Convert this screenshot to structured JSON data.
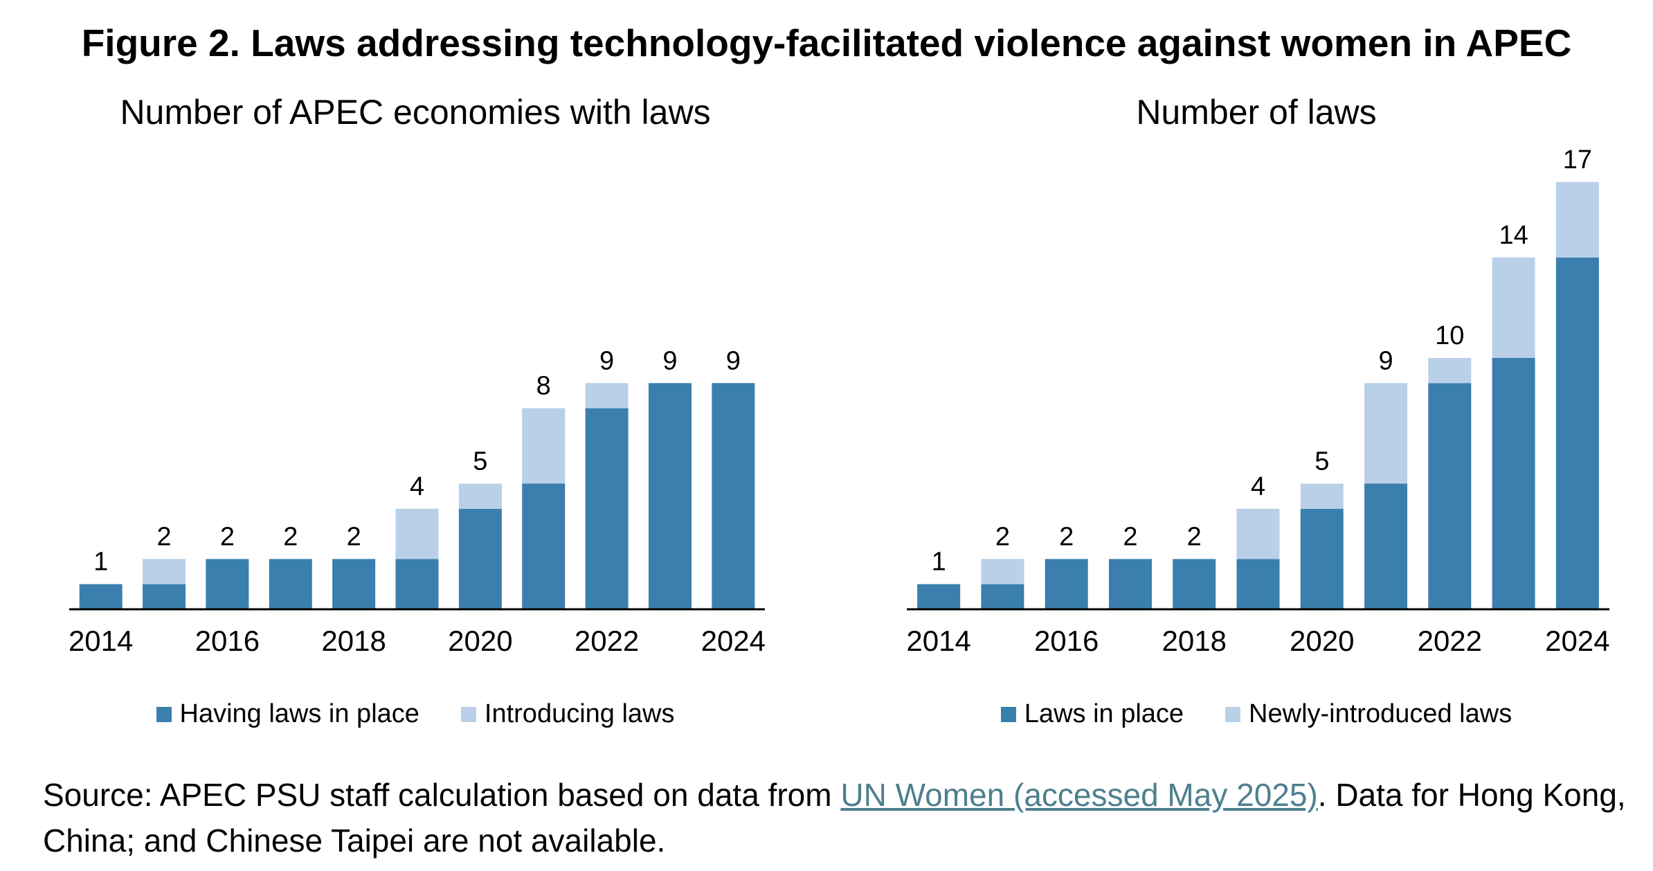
{
  "figure_title": "Figure 2. Laws addressing technology-facilitated violence against women in APEC",
  "colors": {
    "dark": "#3a7fad",
    "light": "#b9d0e8"
  },
  "source": {
    "prefix": "Source: APEC PSU staff calculation based on data from ",
    "link_text": "UN Women (accessed May 2025)",
    "suffix": ". Data for Hong Kong, China; and Chinese Taipei are not available."
  },
  "chart_data": [
    {
      "type": "bar",
      "stacked": true,
      "title": "Number of APEC economies with laws",
      "x": [
        2014,
        2015,
        2016,
        2017,
        2018,
        2019,
        2020,
        2021,
        2022,
        2023,
        2024
      ],
      "tick_labels": [
        "2014",
        "2016",
        "2018",
        "2020",
        "2022",
        "2024"
      ],
      "series": [
        {
          "name": "Having laws in place",
          "values": [
            1,
            1,
            2,
            2,
            2,
            2,
            4,
            5,
            8,
            9,
            9
          ]
        },
        {
          "name": "Introducing laws",
          "values": [
            0,
            1,
            0,
            0,
            0,
            2,
            1,
            3,
            1,
            0,
            0
          ]
        }
      ],
      "totals": [
        1,
        2,
        2,
        2,
        2,
        4,
        5,
        8,
        9,
        9,
        9
      ],
      "ylim": [
        0,
        17
      ],
      "legend": "bottom"
    },
    {
      "type": "bar",
      "stacked": true,
      "title": "Number of laws",
      "x": [
        2014,
        2015,
        2016,
        2017,
        2018,
        2019,
        2020,
        2021,
        2022,
        2023,
        2024
      ],
      "tick_labels": [
        "2014",
        "2016",
        "2018",
        "2020",
        "2022",
        "2024"
      ],
      "series": [
        {
          "name": "Laws in place",
          "values": [
            1,
            1,
            2,
            2,
            2,
            2,
            4,
            5,
            9,
            10,
            14
          ]
        },
        {
          "name": "Newly-introduced laws",
          "values": [
            0,
            1,
            0,
            0,
            0,
            2,
            1,
            4,
            1,
            4,
            3
          ]
        }
      ],
      "totals": [
        1,
        2,
        2,
        2,
        2,
        4,
        5,
        9,
        10,
        14,
        17
      ],
      "ylim": [
        0,
        17
      ],
      "legend": "bottom"
    }
  ]
}
